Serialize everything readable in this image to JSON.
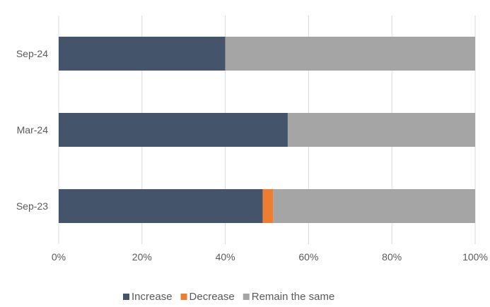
{
  "chart_data": {
    "type": "bar",
    "orientation": "horizontal",
    "stacked": true,
    "categories": [
      "Sep-24",
      "Mar-24",
      "Sep-23"
    ],
    "series": [
      {
        "name": "Increase",
        "values": [
          40,
          55,
          49
        ],
        "color": "#44546a"
      },
      {
        "name": "Decrease",
        "values": [
          0,
          0,
          2.5
        ],
        "color": "#ed7d31"
      },
      {
        "name": "Remain the same",
        "values": [
          60,
          45,
          48.5
        ],
        "color": "#a5a5a5"
      }
    ],
    "xlim": [
      0,
      100
    ],
    "x_ticks": [
      "0%",
      "20%",
      "40%",
      "60%",
      "80%",
      "100%"
    ],
    "grid": true,
    "legend_position": "bottom"
  }
}
